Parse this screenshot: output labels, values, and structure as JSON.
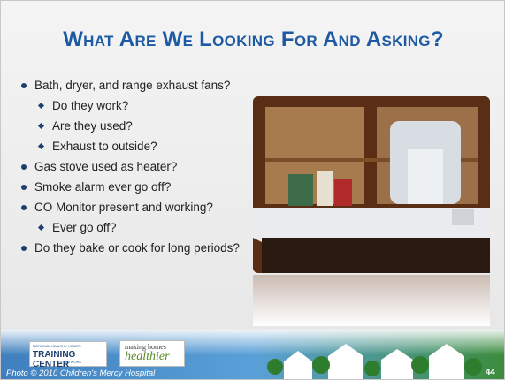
{
  "slide": {
    "title": "What Are We Looking For And Asking?",
    "bullets": [
      {
        "text": "Bath, dryer, and range exhaust fans?",
        "sub": [
          "Do they work?",
          "Are they used?",
          "Exhaust to outside?"
        ]
      },
      {
        "text": "Gas stove used as heater?"
      },
      {
        "text": "Smoke alarm ever go off?"
      },
      {
        "text": "CO Monitor present and working?",
        "sub": [
          "Ever go off?"
        ]
      },
      {
        "text": "Do they bake or cook for long periods?"
      }
    ],
    "logo_left": {
      "line1": "NATIONAL HEALTHY HOMES",
      "line2": "TRAINING CENTER",
      "line3": "& NETWORK"
    },
    "logo_right": {
      "line1": "making homes",
      "line2": "healthier"
    },
    "credit": "Photo © 2010 Children's Mercy Hospital",
    "page_number": "44"
  }
}
